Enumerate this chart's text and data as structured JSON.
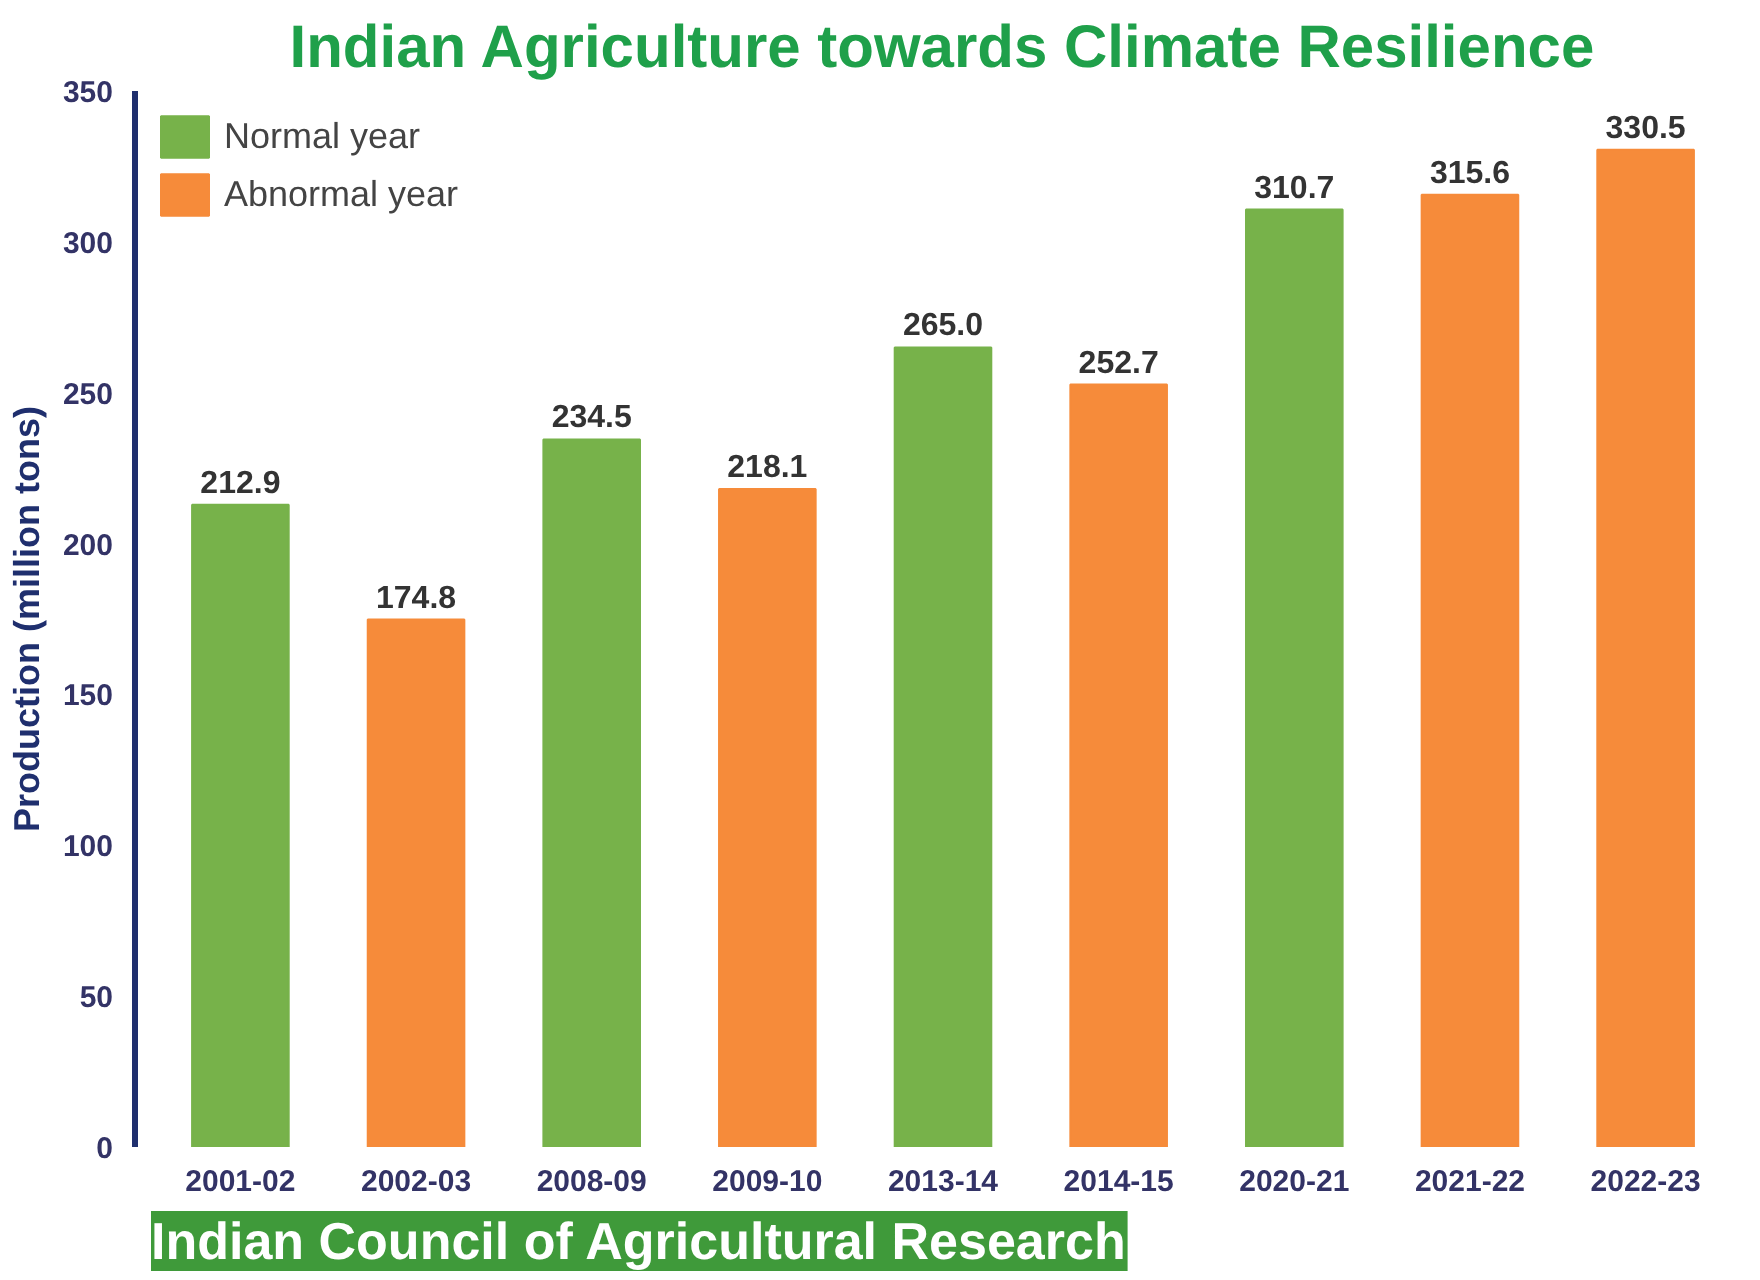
{
  "chart_data": {
    "type": "bar",
    "title": "Indian Agriculture towards Climate Resilience",
    "ylabel": "Production (million tons)",
    "categories": [
      "2001-02",
      "2002-03",
      "2008-09",
      "2009-10",
      "2013-14",
      "2014-15",
      "2020-21",
      "2021-22",
      "2022-23"
    ],
    "series": [
      {
        "name": "Normal year",
        "color": "#77b24a",
        "values": [
          212.9,
          null,
          234.5,
          null,
          265.0,
          null,
          310.7,
          null,
          null
        ],
        "value_labels": [
          "212.9",
          null,
          "234.5",
          null,
          "265.0",
          null,
          "310.7",
          null,
          null
        ]
      },
      {
        "name": "Abnormal year",
        "color": "#f68b3a",
        "values": [
          null,
          174.8,
          null,
          218.1,
          null,
          252.7,
          null,
          315.6,
          330.5
        ],
        "value_labels": [
          null,
          "174.8",
          null,
          "218.1",
          null,
          "252.7",
          null,
          "315.6",
          "330.5"
        ]
      }
    ],
    "ylim": [
      0,
      350
    ],
    "yticks": [
      0,
      50,
      100,
      150,
      200,
      250,
      300,
      350
    ],
    "grid": false,
    "legend": "top left",
    "annotations": [
      "Indian Council of Agricultural Research"
    ]
  }
}
